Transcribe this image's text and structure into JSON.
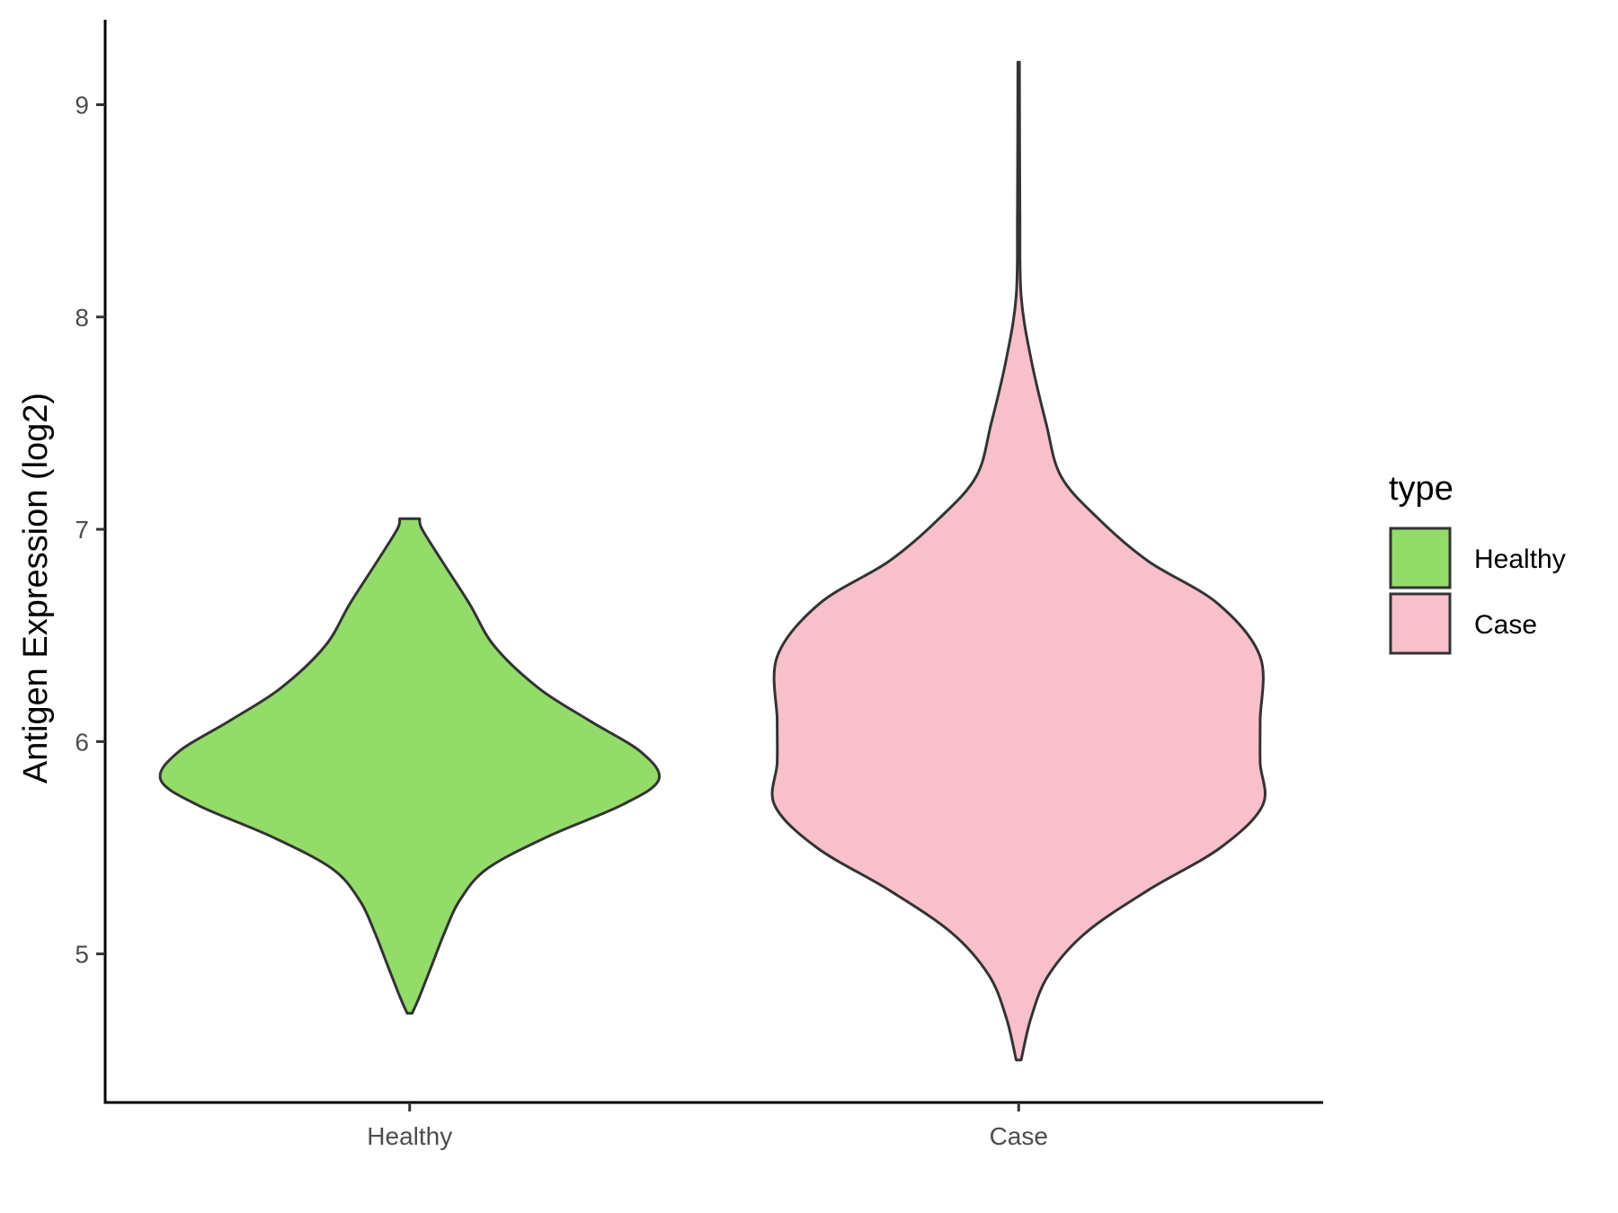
{
  "chart_data": {
    "type": "violin",
    "title": "",
    "xlabel": "",
    "ylabel": "Antigen Expression (log2)",
    "categories": [
      "Healthy",
      "Case"
    ],
    "ylim": [
      4.3,
      9.4
    ],
    "yticks": [
      5,
      6,
      7,
      8,
      9
    ],
    "grid": false,
    "legend": {
      "title": "type",
      "placement": "right",
      "entries": [
        {
          "label": "Healthy",
          "color": "#93dc6a"
        },
        {
          "label": "Case",
          "color": "#f8c0cb"
        }
      ]
    },
    "series": [
      {
        "category": "Healthy",
        "color": "#93dc6a",
        "profile": [
          [
            4.72,
            0.01
          ],
          [
            4.8,
            0.04
          ],
          [
            4.95,
            0.09
          ],
          [
            5.1,
            0.14
          ],
          [
            5.25,
            0.2
          ],
          [
            5.4,
            0.31
          ],
          [
            5.55,
            0.55
          ],
          [
            5.7,
            0.85
          ],
          [
            5.82,
            1.0
          ],
          [
            5.95,
            0.93
          ],
          [
            6.1,
            0.72
          ],
          [
            6.25,
            0.52
          ],
          [
            6.45,
            0.34
          ],
          [
            6.65,
            0.24
          ],
          [
            6.85,
            0.13
          ],
          [
            7.0,
            0.05
          ],
          [
            7.05,
            0.04
          ]
        ]
      },
      {
        "category": "Case",
        "color": "#f8c0cb",
        "profile": [
          [
            4.5,
            0.01
          ],
          [
            4.7,
            0.05
          ],
          [
            4.9,
            0.12
          ],
          [
            5.1,
            0.27
          ],
          [
            5.3,
            0.52
          ],
          [
            5.5,
            0.81
          ],
          [
            5.7,
            0.98
          ],
          [
            5.9,
            0.97
          ],
          [
            6.1,
            0.97
          ],
          [
            6.4,
            0.97
          ],
          [
            6.65,
            0.8
          ],
          [
            6.85,
            0.52
          ],
          [
            7.05,
            0.32
          ],
          [
            7.25,
            0.17
          ],
          [
            7.5,
            0.11
          ],
          [
            7.8,
            0.05
          ],
          [
            8.1,
            0.01
          ],
          [
            8.5,
            0.005
          ],
          [
            9.2,
            0.003
          ]
        ]
      }
    ]
  }
}
